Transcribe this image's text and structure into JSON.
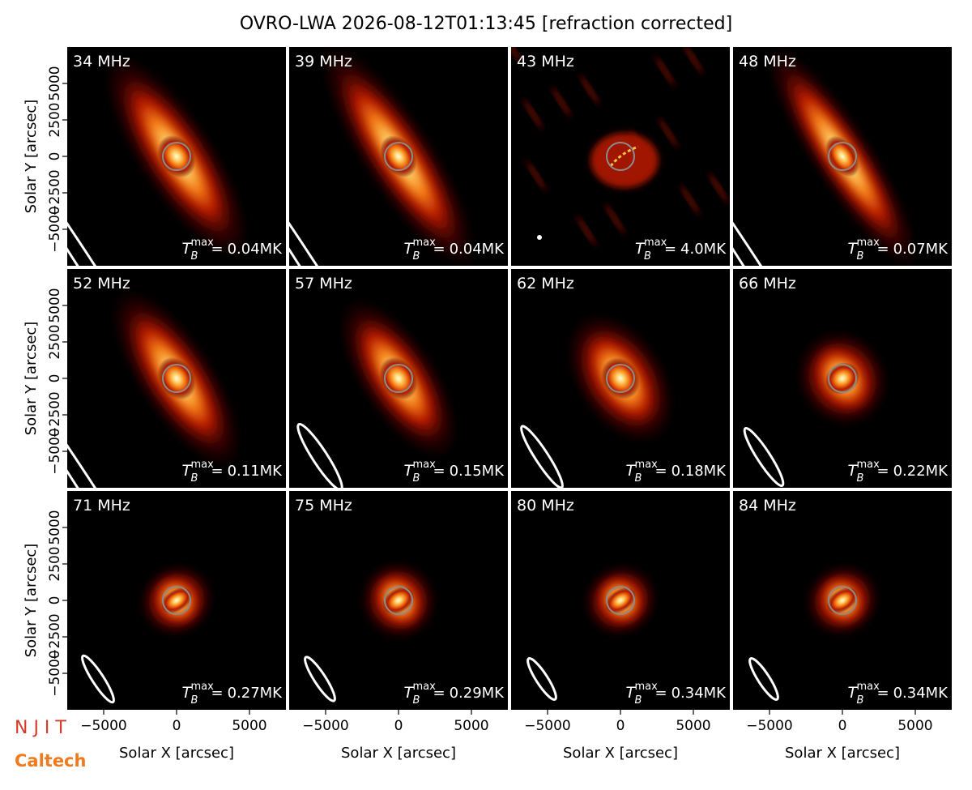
{
  "chart_data": {
    "type": "image-grid",
    "title": "OVRO-LWA 2026-08-12T01:13:45 [refraction corrected]",
    "xlabel": "Solar X [arcsec]",
    "ylabel": "Solar Y [arcsec]",
    "xlim": [
      -7500,
      7500
    ],
    "ylim": [
      -7500,
      7500
    ],
    "xticks": [
      {
        "value": -5000,
        "label": "−5000"
      },
      0,
      5000
    ],
    "yticks": [
      {
        "value": -5000,
        "label": "−5000"
      },
      {
        "value": -2500,
        "label": "−2500"
      },
      0,
      2500,
      5000
    ],
    "tb_symbol": "T",
    "tb_sub": "B",
    "tb_sup": "max",
    "tb_eq": "=",
    "panels": [
      {
        "label": "34 MHz",
        "tb_max": "0.04MK"
      },
      {
        "label": "39 MHz",
        "tb_max": "0.04MK"
      },
      {
        "label": "43 MHz",
        "tb_max": "4.0MK"
      },
      {
        "label": "48 MHz",
        "tb_max": "0.07MK"
      },
      {
        "label": "52 MHz",
        "tb_max": "0.11MK"
      },
      {
        "label": "57 MHz",
        "tb_max": "0.15MK"
      },
      {
        "label": "62 MHz",
        "tb_max": "0.18MK"
      },
      {
        "label": "66 MHz",
        "tb_max": "0.22MK"
      },
      {
        "label": "71 MHz",
        "tb_max": "0.27MK"
      },
      {
        "label": "75 MHz",
        "tb_max": "0.29MK"
      },
      {
        "label": "80 MHz",
        "tb_max": "0.34MK"
      },
      {
        "label": "84 MHz",
        "tb_max": "0.34MK"
      }
    ],
    "logos": [
      "N J I T",
      "Caltech"
    ]
  }
}
